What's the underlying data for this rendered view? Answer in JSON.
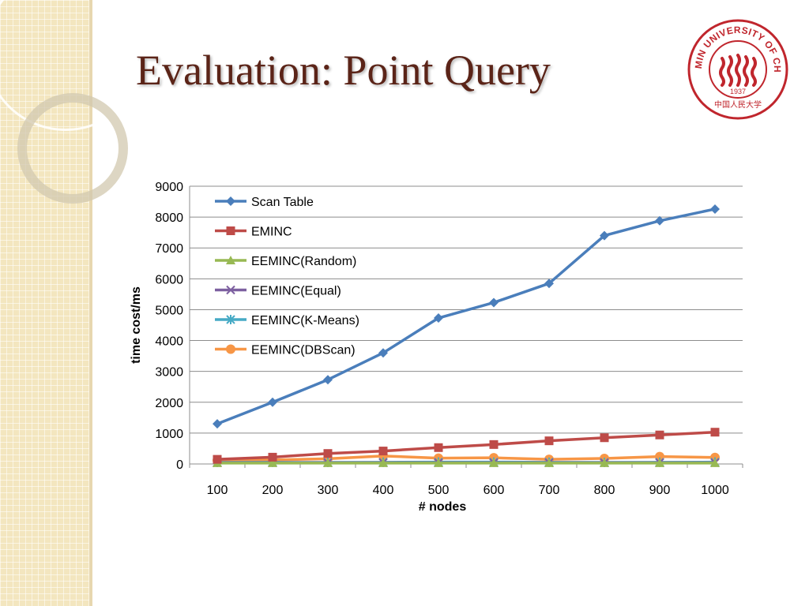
{
  "slide": {
    "title": "Evaluation: Point Query"
  },
  "logo": {
    "arc_text": "RENMIN UNIVERSITY OF CHINA",
    "year": "1937",
    "bottom_text": "中国人民大学",
    "color": "#c0262d"
  },
  "chart_data": {
    "type": "line",
    "title": "",
    "xlabel": "# nodes",
    "ylabel": "time cost/ms",
    "x": [
      100,
      200,
      300,
      400,
      500,
      600,
      700,
      800,
      900,
      1000
    ],
    "x_tick_labels": [
      "100",
      "200",
      "300",
      "400",
      "500",
      "600",
      "700",
      "800",
      "900",
      "1000"
    ],
    "ylim": [
      0,
      9000
    ],
    "y_ticks": [
      0,
      1000,
      2000,
      3000,
      4000,
      5000,
      6000,
      7000,
      8000,
      9000
    ],
    "y_tick_labels": [
      "0",
      "1000",
      "2000",
      "3000",
      "4000",
      "5000",
      "6000",
      "7000",
      "8000",
      "9000"
    ],
    "grid": "horizontal",
    "legend_position": "top-left",
    "series": [
      {
        "name": "Scan Table",
        "color": "#4a7ebb",
        "marker": "diamond",
        "values": [
          1300,
          2000,
          2730,
          3600,
          4730,
          5230,
          5850,
          7400,
          7880,
          8260
        ]
      },
      {
        "name": "EMINC",
        "color": "#be4b48",
        "marker": "square",
        "values": [
          150,
          220,
          340,
          420,
          530,
          630,
          750,
          850,
          940,
          1030
        ]
      },
      {
        "name": "EEMINC(Random)",
        "color": "#98b954",
        "marker": "triangle",
        "values": [
          30,
          30,
          30,
          30,
          30,
          30,
          30,
          30,
          30,
          30
        ]
      },
      {
        "name": "EEMINC(Equal)",
        "color": "#7d60a0",
        "marker": "x",
        "values": [
          40,
          40,
          40,
          40,
          40,
          40,
          40,
          40,
          40,
          40
        ]
      },
      {
        "name": "EEMINC(K-Means)",
        "color": "#46aac5",
        "marker": "star",
        "values": [
          50,
          55,
          50,
          55,
          60,
          60,
          55,
          50,
          55,
          60
        ]
      },
      {
        "name": "EEMINC(DBScan)",
        "color": "#f79646",
        "marker": "circle",
        "values": [
          120,
          130,
          170,
          260,
          190,
          200,
          150,
          180,
          240,
          210
        ]
      }
    ]
  }
}
